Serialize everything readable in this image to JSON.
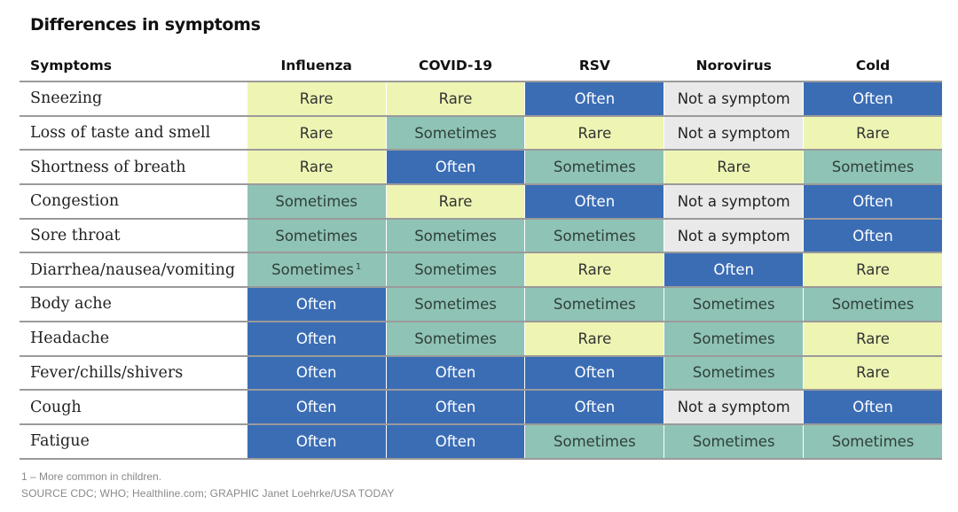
{
  "title": "Differences in symptoms",
  "footnote": "1 – More common in children.",
  "source": "SOURCE CDC; WHO; Healthline.com; GRAPHIC Janet Loehrke/USA TODAY",
  "colors": {
    "Rare": "#eef5b3",
    "Sometimes": "#8fc3b5",
    "Often": "#3b6db5",
    "Not a symptom": "#e9e9e9"
  },
  "chart_data": {
    "type": "table",
    "title": "Differences in symptoms",
    "row_header": "Symptoms",
    "columns": [
      "Influenza",
      "COVID-19",
      "RSV",
      "Norovirus",
      "Cold"
    ],
    "rows": [
      {
        "label": "Sneezing",
        "values": [
          "Rare",
          "Rare",
          "Often",
          "Not a symptom",
          "Often"
        ]
      },
      {
        "label": "Loss of taste and smell",
        "values": [
          "Rare",
          "Sometimes",
          "Rare",
          "Not a symptom",
          "Rare"
        ]
      },
      {
        "label": "Shortness of breath",
        "values": [
          "Rare",
          "Often",
          "Sometimes",
          "Rare",
          "Sometimes"
        ]
      },
      {
        "label": "Congestion",
        "values": [
          "Sometimes",
          "Rare",
          "Often",
          "Not a symptom",
          "Often"
        ]
      },
      {
        "label": "Sore throat",
        "values": [
          "Sometimes",
          "Sometimes",
          "Sometimes",
          "Not a symptom",
          "Often"
        ]
      },
      {
        "label": "Diarrhea/nausea/vomiting",
        "values": [
          "Sometimes",
          "Sometimes",
          "Rare",
          "Often",
          "Rare"
        ],
        "notes": [
          "1",
          "",
          "",
          "",
          ""
        ]
      },
      {
        "label": "Body ache",
        "values": [
          "Often",
          "Sometimes",
          "Sometimes",
          "Sometimes",
          "Sometimes"
        ]
      },
      {
        "label": "Headache",
        "values": [
          "Often",
          "Sometimes",
          "Rare",
          "Sometimes",
          "Rare"
        ]
      },
      {
        "label": "Fever/chills/shivers",
        "values": [
          "Often",
          "Often",
          "Often",
          "Sometimes",
          "Rare"
        ]
      },
      {
        "label": "Cough",
        "values": [
          "Often",
          "Often",
          "Often",
          "Not a symptom",
          "Often"
        ]
      },
      {
        "label": "Fatigue",
        "values": [
          "Often",
          "Often",
          "Sometimes",
          "Sometimes",
          "Sometimes"
        ]
      }
    ]
  }
}
